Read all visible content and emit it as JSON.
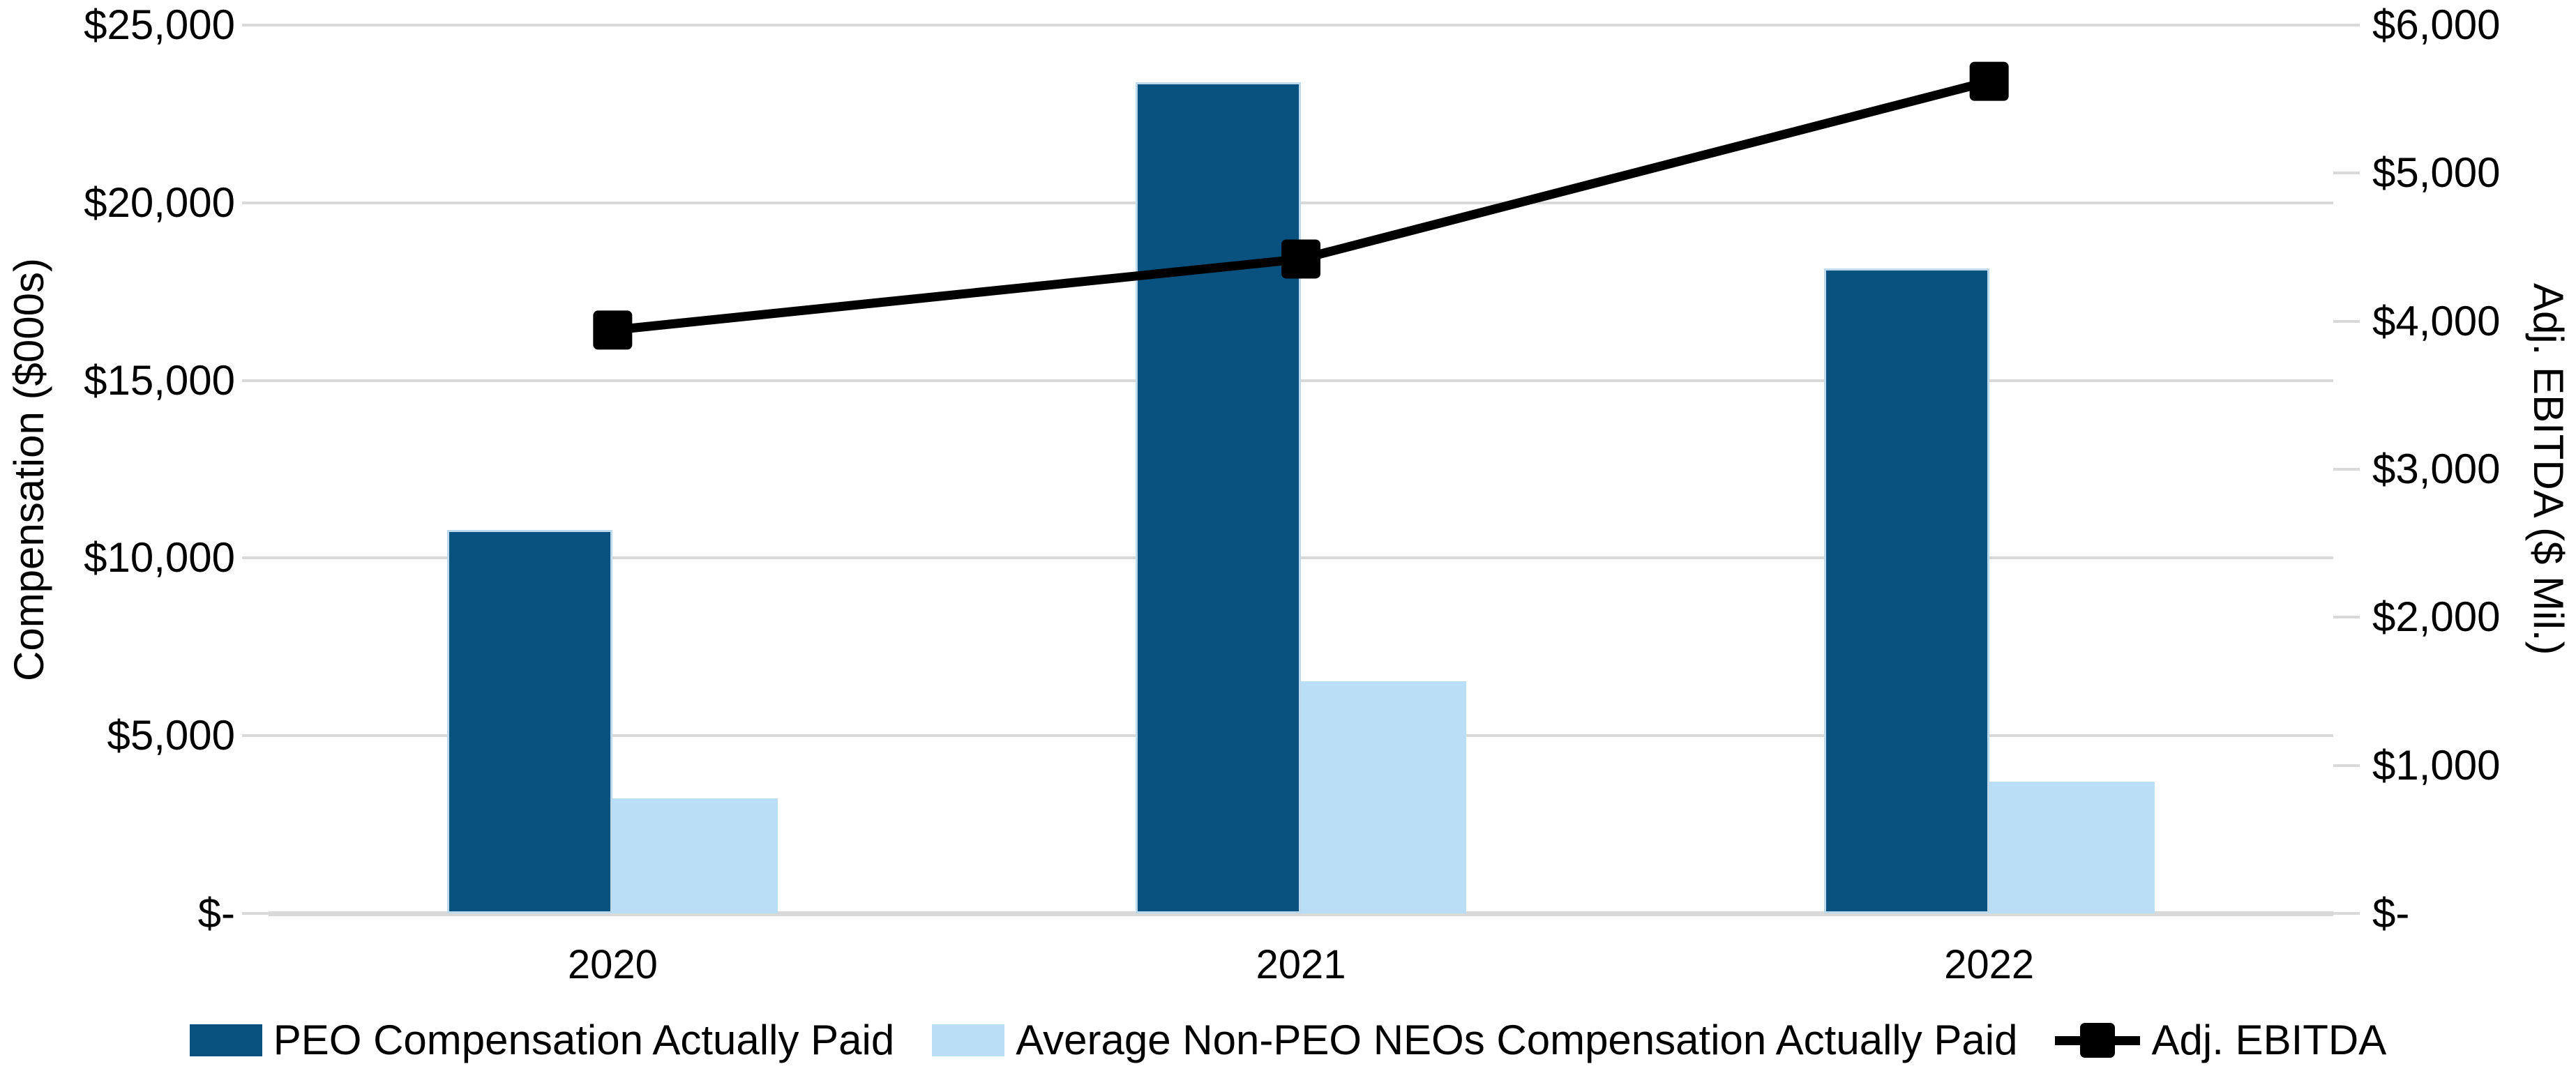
{
  "chart_data": {
    "type": "combo",
    "categories": [
      "2020",
      "2021",
      "2022"
    ],
    "series": [
      {
        "name": "PEO Compensation Actually Paid",
        "type": "bar",
        "axis": "left",
        "color": "#095280",
        "border_color": "#bdd9ee",
        "values": [
          10800,
          23400,
          18150
        ]
      },
      {
        "name": "Average Non-PEO NEOs Compensation Actually Paid",
        "type": "bar",
        "axis": "left",
        "color": "#b9def5",
        "border_color": "#b9def5",
        "values": [
          3230,
          6530,
          3700
        ]
      },
      {
        "name": "Adj. EBITDA",
        "type": "line",
        "axis": "right",
        "color": "#000000",
        "marker": "square",
        "values": [
          3940,
          4420,
          5620
        ]
      }
    ],
    "left_axis": {
      "title": "Compensation ($000s)",
      "min": 0,
      "max": 25000,
      "step": 5000,
      "tick_labels": [
        "$-",
        "$5,000",
        "$10,000",
        "$15,000",
        "$20,000",
        "$25,000"
      ]
    },
    "right_axis": {
      "title": "Adj. EBITDA ($ Mil.)",
      "min": 0,
      "max": 6000,
      "step": 1000,
      "tick_labels": [
        "$-",
        "$1,000",
        "$2,000",
        "$3,000",
        "$4,000",
        "$5,000",
        "$6,000"
      ]
    },
    "grid": true,
    "legend_position": "bottom",
    "colors": {
      "gridline": "#d9d9d9",
      "axis_line": "#d9d9d9",
      "tick_mark": "#d9d9d9",
      "text": "#000000",
      "background": "#ffffff"
    }
  }
}
